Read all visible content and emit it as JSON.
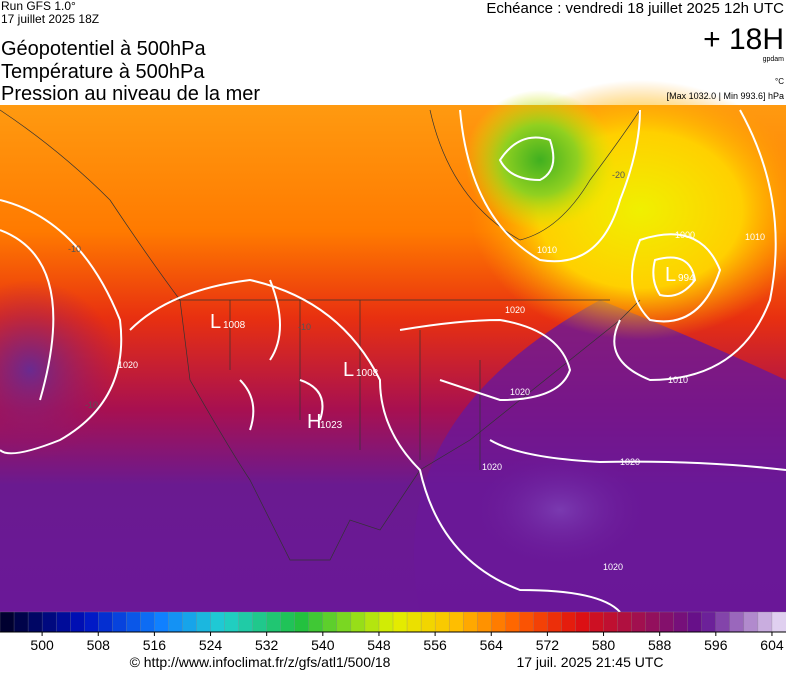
{
  "header": {
    "run": "Run GFS 1.0°",
    "run_date": "17 juillet 2025 18Z",
    "valid": "Echéance : vendredi 18 juillet 2025 12h UTC",
    "lead": "+ 18H",
    "unit": "gpdam",
    "temp_unit": "°C",
    "pressure_range": "[Max 1032.0 | Min 993.6] hPa",
    "titles": [
      "Géopotentiel à 500hPa",
      "Température à 500hPa",
      "Pression au niveau de la mer"
    ]
  },
  "map": {
    "centers": [
      {
        "letter": "L",
        "value": "1008"
      },
      {
        "letter": "L",
        "value": "1008"
      },
      {
        "letter": "H",
        "value": "1023"
      },
      {
        "letter": "L",
        "value": "994"
      }
    ],
    "labels": [
      "1000",
      "1010",
      "1010",
      "1010",
      "1020",
      "1020",
      "1020",
      "1020",
      "1020",
      "1020",
      "-20",
      "-10",
      "-10",
      "-10"
    ]
  },
  "colorbar": {
    "lim": [
      494,
      606
    ],
    "ticks": [
      500,
      508,
      516,
      524,
      532,
      540,
      548,
      556,
      564,
      572,
      580,
      588,
      596,
      604
    ]
  },
  "footer": {
    "source": "© http://www.infoclimat.fr/z/gfs/atl1/500/18",
    "generated": "17 juil. 2025 21:45 UTC"
  }
}
